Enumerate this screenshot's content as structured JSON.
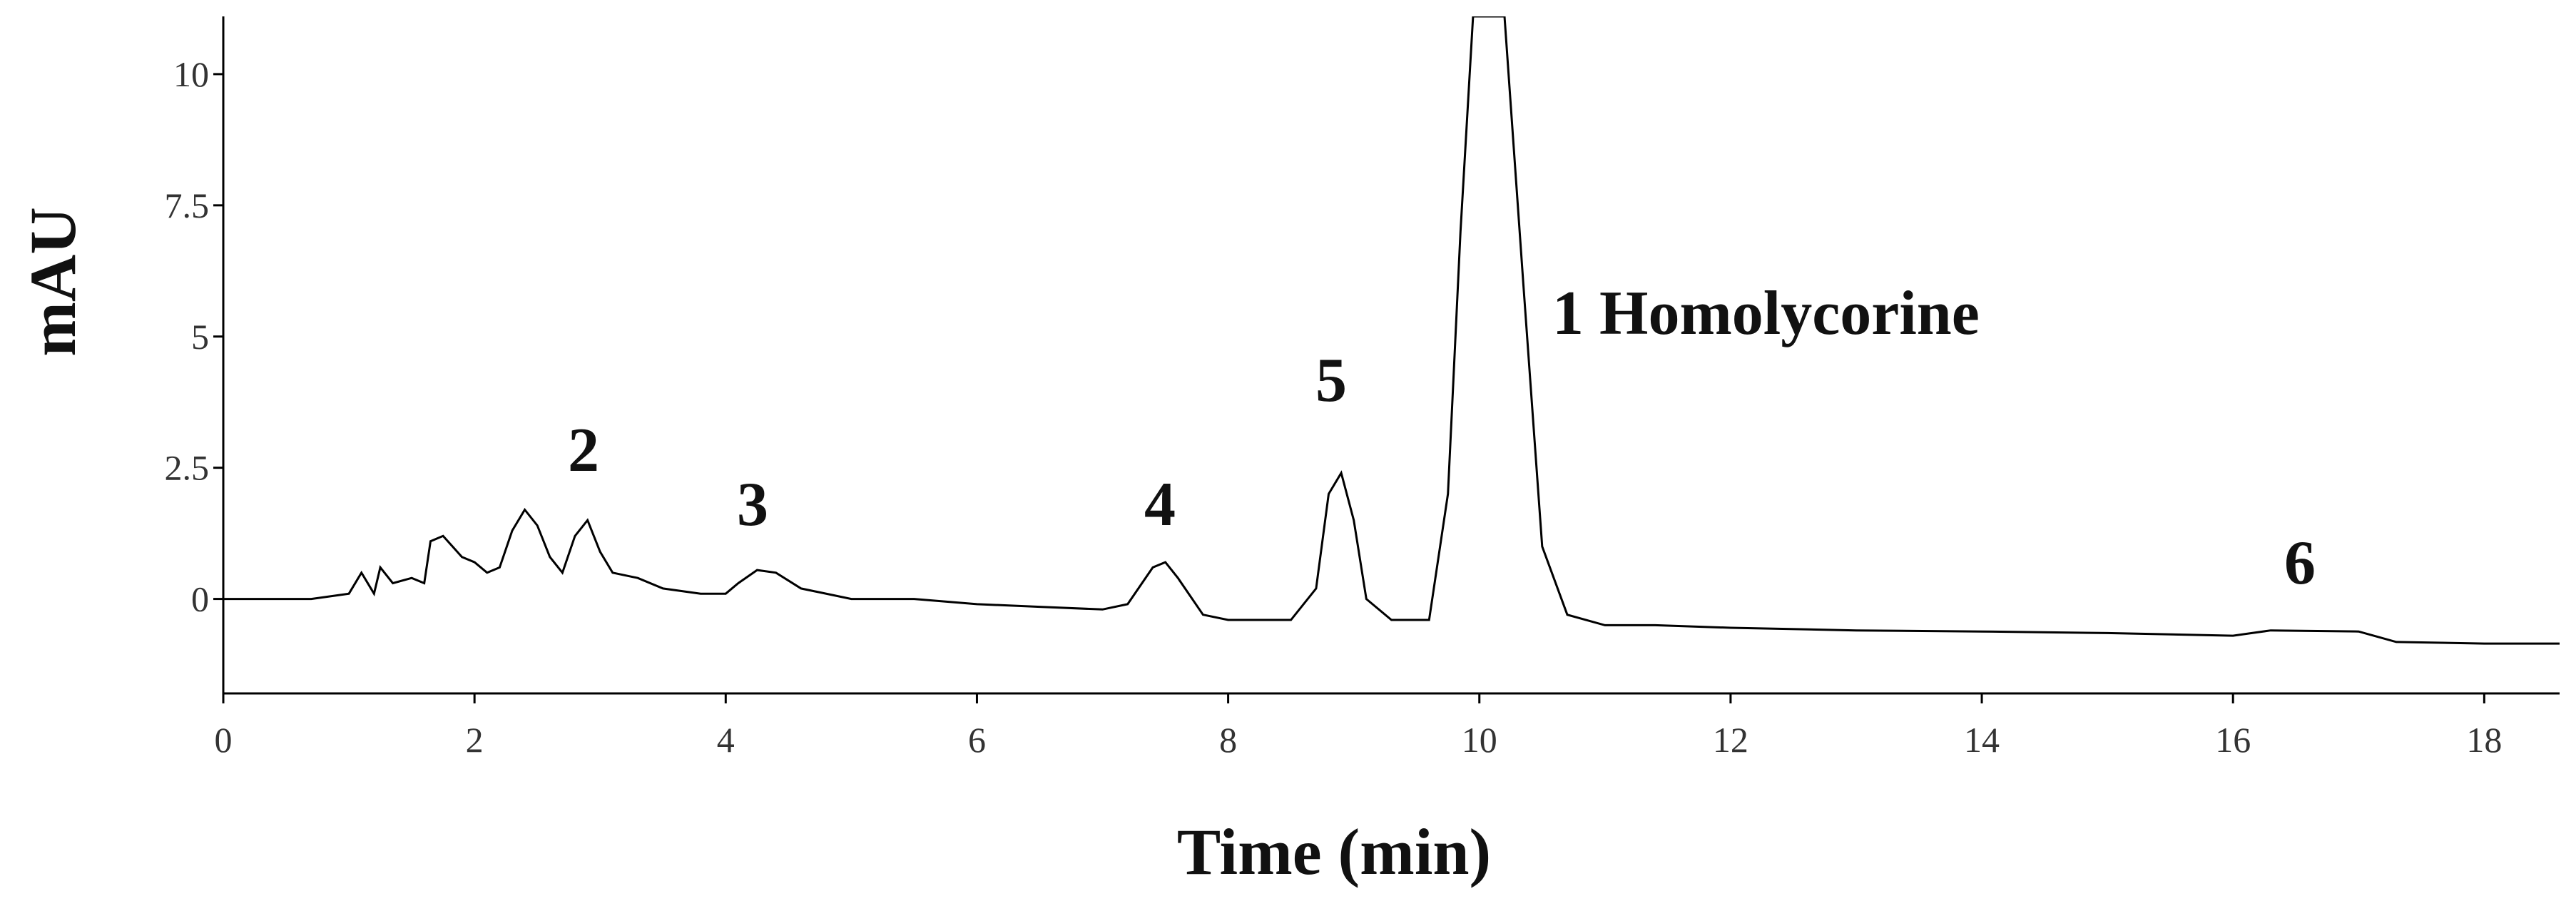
{
  "chart_data": {
    "type": "line",
    "xlabel": "Time (min)",
    "ylabel": "mAU",
    "x": [
      0,
      0.7,
      1.0,
      1.1,
      1.2,
      1.25,
      1.35,
      1.5,
      1.6,
      1.65,
      1.75,
      1.9,
      2.0,
      2.1,
      2.2,
      2.3,
      2.4,
      2.5,
      2.6,
      2.7,
      2.8,
      2.9,
      3.0,
      3.1,
      3.3,
      3.5,
      3.8,
      4.0,
      4.1,
      4.25,
      4.4,
      4.6,
      5.0,
      5.5,
      6.0,
      6.5,
      7.0,
      7.2,
      7.4,
      7.5,
      7.6,
      7.8,
      8.0,
      8.5,
      8.7,
      8.8,
      8.9,
      9.0,
      9.1,
      9.3,
      9.6,
      9.75,
      9.85,
      9.95,
      10.2,
      10.35,
      10.5,
      10.7,
      11.0,
      11.4,
      12,
      13,
      14,
      15,
      16,
      16.3,
      17,
      17.3,
      18,
      18.6
    ],
    "series": [
      {
        "color": "#000000",
        "values": [
          0,
          0,
          0.1,
          0.5,
          0.1,
          0.6,
          0.3,
          0.4,
          0.3,
          1.1,
          1.2,
          0.8,
          0.7,
          0.5,
          0.6,
          1.3,
          1.7,
          1.4,
          0.8,
          0.5,
          1.2,
          1.5,
          0.9,
          0.5,
          0.4,
          0.2,
          0.1,
          0.1,
          0.3,
          0.55,
          0.5,
          0.2,
          0,
          0,
          -0.1,
          -0.15,
          -0.2,
          -0.1,
          0.6,
          0.7,
          0.4,
          -0.3,
          -0.4,
          -0.4,
          0.2,
          2.0,
          2.4,
          1.5,
          0,
          -0.4,
          -0.4,
          2,
          7,
          11.1,
          11.1,
          6,
          1,
          -0.3,
          -0.5,
          -0.5,
          -0.55,
          -0.6,
          -0.62,
          -0.65,
          -0.7,
          -0.6,
          -0.62,
          -0.82,
          -0.85,
          -0.85
        ]
      }
    ],
    "xlim": [
      0,
      18.6
    ],
    "ylim": [
      -1.8,
      11.1
    ],
    "xticks": [
      0,
      2,
      4,
      6,
      8,
      10,
      12,
      14,
      16,
      18
    ],
    "yticks": [
      0,
      2.5,
      5,
      7.5,
      10
    ],
    "annotations": [
      "1 Homolycorine",
      "2",
      "3",
      "4",
      "5",
      "6"
    ]
  }
}
